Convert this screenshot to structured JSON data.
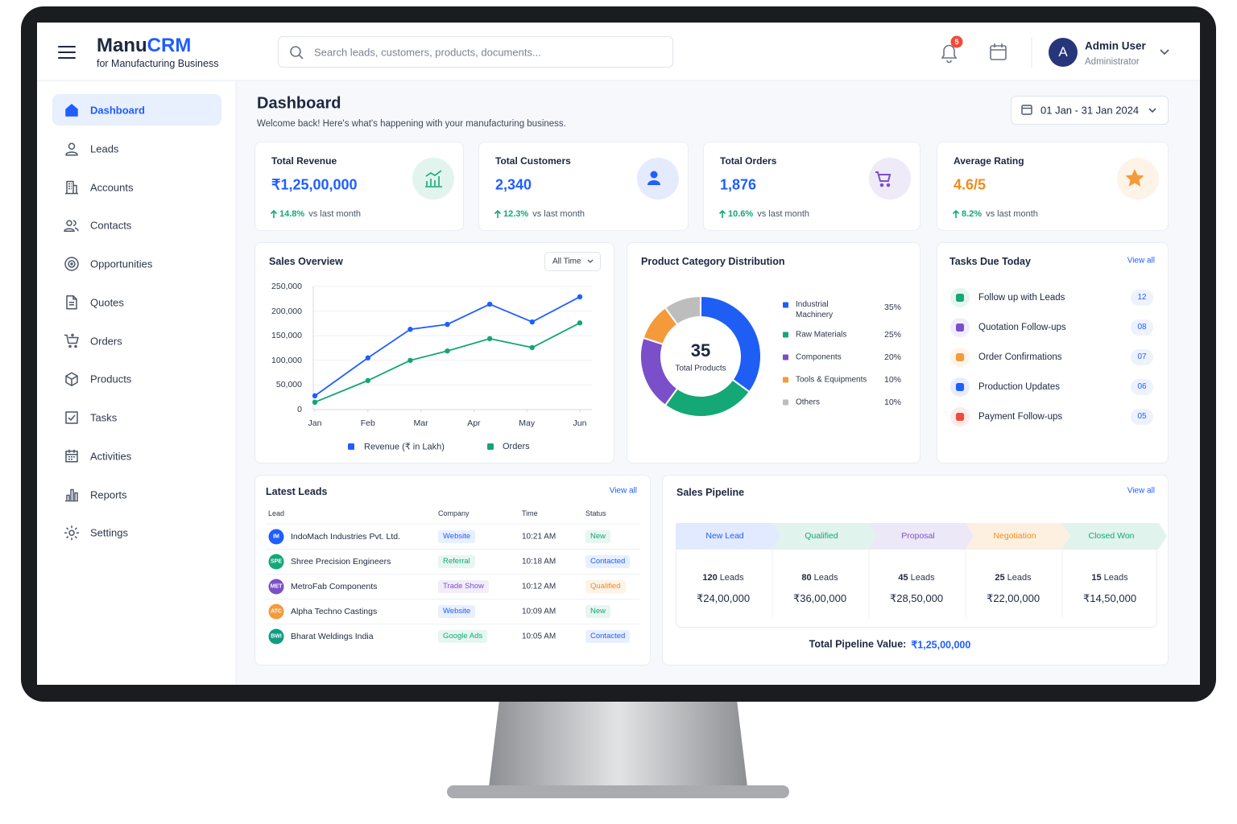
{
  "header": {
    "brand_main": "Manu",
    "brand_accent": "CRM",
    "tagline": "for Manufacturing Business",
    "search_placeholder": "Search leads, customers, products, documents...",
    "notification_count": "5",
    "user_initial": "A",
    "user_name": "Admin User",
    "user_role": "Administrator"
  },
  "sidebar": {
    "items": [
      "Dashboard",
      "Leads",
      "Accounts",
      "Contacts",
      "Opportunities",
      "Quotes",
      "Orders",
      "Products",
      "Tasks",
      "Activities",
      "Reports",
      "Settings"
    ]
  },
  "page": {
    "title": "Dashboard",
    "subtitle": "Welcome back! Here's what's happening with your manufacturing business.",
    "date_range": "01 Jan - 31 Jan 2024"
  },
  "kpis": [
    {
      "label": "Total Revenue",
      "value": "₹1,25,00,000",
      "change": "14.8%",
      "comparison": "vs last month",
      "color": "#1f5eff",
      "icon_color": "#13a876"
    },
    {
      "label": "Total Customers",
      "value": "2,340",
      "change": "12.3%",
      "comparison": "vs last month",
      "color": "#1f5eff",
      "icon_color": "#1f5eff"
    },
    {
      "label": "Total Orders",
      "value": "1,876",
      "change": "10.6%",
      "comparison": "vs last month",
      "color": "#1f5eff",
      "icon_color": "#7b4fc9"
    },
    {
      "label": "Average Rating",
      "value": "4.6/5",
      "change": "8.2%",
      "comparison": "vs last month",
      "color": "#f08c1a",
      "icon_color": "#f59a3a"
    }
  ],
  "chart_data": [
    {
      "type": "line",
      "title": "Sales Overview",
      "filter": "All Time",
      "x": [
        0,
        1,
        1.8,
        2.5,
        3.3,
        4.1,
        5
      ],
      "xlim": [
        0,
        5
      ],
      "xticks": [
        {
          "value": 0,
          "label": "Jan"
        },
        {
          "value": 1,
          "label": "Feb"
        },
        {
          "value": 2,
          "label": "Mar"
        },
        {
          "value": 3,
          "label": "Apr"
        },
        {
          "value": 4,
          "label": "May"
        },
        {
          "value": 5,
          "label": "Jun"
        }
      ],
      "ylim": [
        0,
        250000
      ],
      "yticks": [
        0,
        {
          "value": 50000,
          "label": "50,000"
        },
        {
          "value": 100000,
          "label": "100,000"
        },
        {
          "value": 150000,
          "label": "150,000"
        },
        {
          "value": 200000,
          "label": "200,000"
        },
        {
          "value": 250000,
          "label": "250,000"
        }
      ],
      "grid": true,
      "series": [
        {
          "name": "Revenue (₹ in Lakh)",
          "color": "#1f5eff",
          "values": [
            28000,
            105000,
            163000,
            173000,
            214000,
            178000,
            229000
          ]
        },
        {
          "name": "Orders",
          "color": "#12a673",
          "values": [
            15000,
            59000,
            100000,
            119000,
            144000,
            126000,
            176000
          ]
        }
      ]
    },
    {
      "type": "pie",
      "title": "Product Category Distribution",
      "center_value": 35,
      "center_label": "Total Products",
      "categories": [
        "Industrial Machinery",
        "Raw Materials",
        "Components",
        "Tools & Equipments",
        "Others"
      ],
      "values": [
        35,
        25,
        20,
        10,
        10
      ],
      "value_labels": [
        "35%",
        "25%",
        "20%",
        "10%",
        "10%"
      ],
      "colors": [
        "#1e5ef5",
        "#13a876",
        "#7b4fc9",
        "#f59a3a",
        "#bdbdbd"
      ]
    }
  ],
  "tasks": {
    "title": "Tasks Due Today",
    "link": "View all",
    "items": [
      {
        "label": "Follow up with Leads",
        "count": "12",
        "color": "#13a876"
      },
      {
        "label": "Quotation Follow-ups",
        "count": "08",
        "color": "#7b4fc9"
      },
      {
        "label": "Order Confirmations",
        "count": "07",
        "color": "#f59a3a"
      },
      {
        "label": "Production Updates",
        "count": "06",
        "color": "#1f5eff"
      },
      {
        "label": "Payment Follow-ups",
        "count": "05",
        "color": "#ef4b3a"
      }
    ]
  },
  "leads": {
    "title": "Latest Leads",
    "link": "View all",
    "columns": [
      "Lead",
      "Company",
      "Time",
      "Status"
    ],
    "rows": [
      {
        "initials": "IM",
        "name": "IndoMach Industries Pvt. Ltd.",
        "source": "Website",
        "time": "10:21 AM",
        "status": "New",
        "color": "#1f5eff",
        "source_color": "#1f5eff",
        "status_color": "#13a876"
      },
      {
        "initials": "SPE",
        "name": "Shree Precision Engineers",
        "source": "Referral",
        "time": "10:18 AM",
        "status": "Contacted",
        "color": "#13a876",
        "source_color": "#13a876",
        "status_color": "#1f5eff"
      },
      {
        "initials": "MET",
        "name": "MetroFab Components",
        "source": "Trade Show",
        "time": "10:12 AM",
        "status": "Qualified",
        "color": "#7b4fc9",
        "source_color": "#7b4fc9",
        "status_color": "#f08c1a"
      },
      {
        "initials": "ATC",
        "name": "Alpha Techno Castings",
        "source": "Website",
        "time": "10:09 AM",
        "status": "New",
        "color": "#f59a3a",
        "source_color": "#1f5eff",
        "status_color": "#13a876"
      },
      {
        "initials": "BWI",
        "name": "Bharat Weldings India",
        "source": "Google Ads",
        "time": "10:05 AM",
        "status": "Contacted",
        "color": "#139a82",
        "source_color": "#13a876",
        "status_color": "#1f5eff"
      }
    ]
  },
  "pipeline": {
    "title": "Sales Pipeline",
    "link": "View all",
    "unit": "Leads",
    "stages": [
      {
        "name": "New Lead",
        "leads": "120",
        "value": "₹24,00,000",
        "color": "#1f5eff"
      },
      {
        "name": "Qualified",
        "leads": "80",
        "value": "₹36,00,000",
        "color": "#13a876"
      },
      {
        "name": "Proposal",
        "leads": "45",
        "value": "₹28,50,000",
        "color": "#7b4fc9"
      },
      {
        "name": "Negotiation",
        "leads": "25",
        "value": "₹22,00,000",
        "color": "#f08c1a"
      },
      {
        "name": "Closed Won",
        "leads": "15",
        "value": "₹14,50,000",
        "color": "#13a876"
      }
    ],
    "total_label": "Total Pipeline Value:",
    "total_value": "₹1,25,00,000"
  }
}
